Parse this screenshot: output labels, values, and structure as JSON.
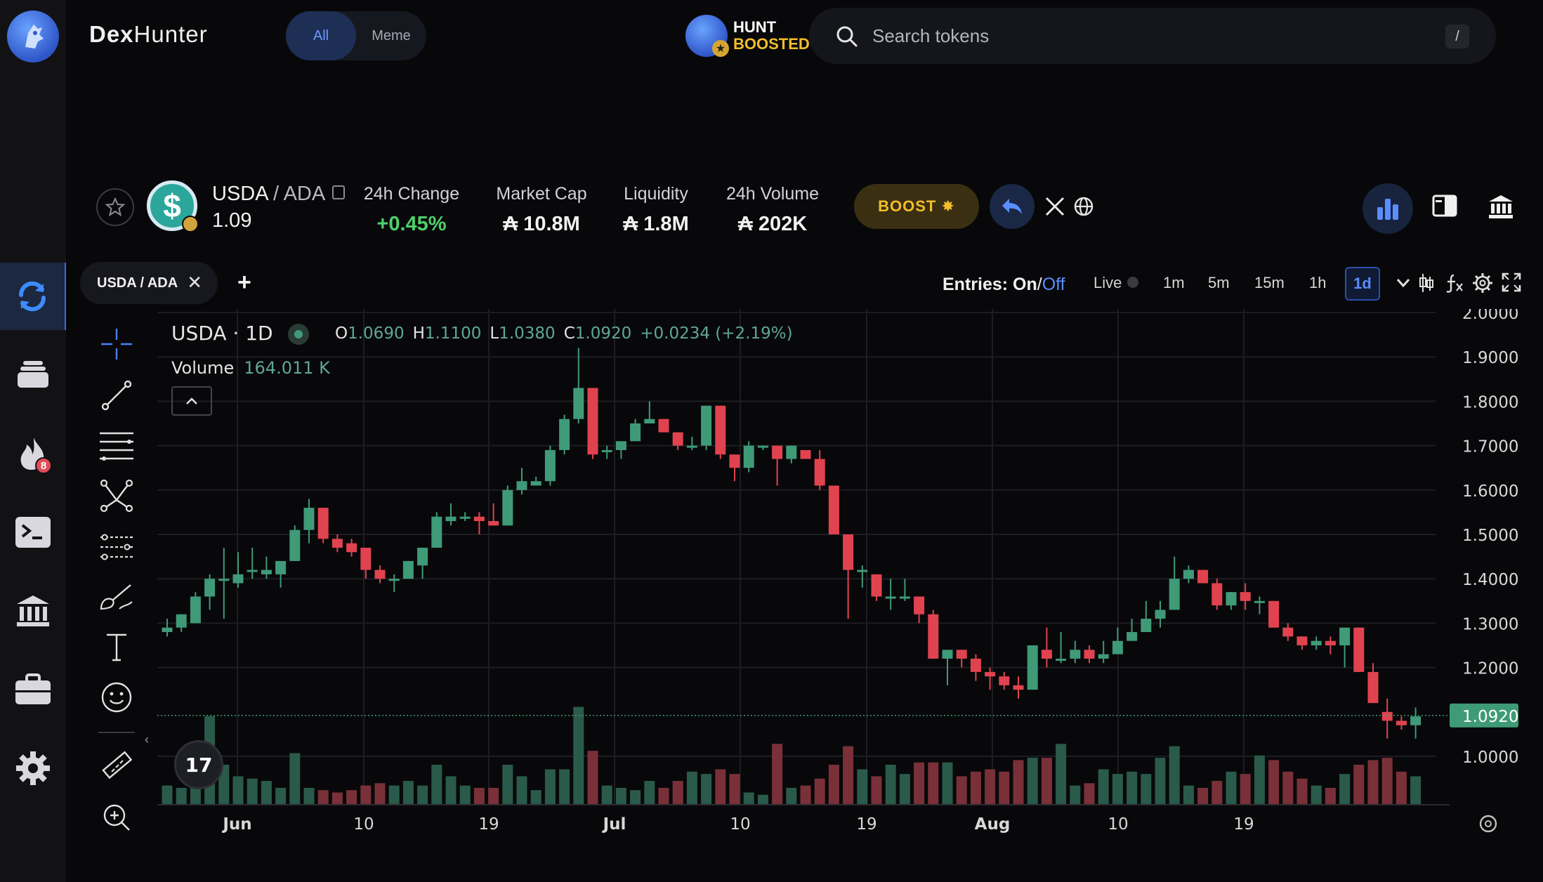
{
  "brand": {
    "name_left": "Dex",
    "name_right": "Hunter"
  },
  "filter": {
    "all_label": "All",
    "meme_label": "Meme"
  },
  "hunt": {
    "line1": "HUNT",
    "line2": "BOOSTED"
  },
  "search": {
    "placeholder": "Search tokens",
    "shortcut": "/"
  },
  "sidebar": {
    "trending_badge": "8"
  },
  "token": {
    "base": "USDA",
    "separator": " / ",
    "quote": "ADA",
    "price": "1.09",
    "stats": [
      {
        "label": "24h Change",
        "value": "+0.45%"
      },
      {
        "label": "Market Cap",
        "value": "₳ 10.8M"
      },
      {
        "label": "Liquidity",
        "value": "₳ 1.8M"
      },
      {
        "label": "24h Volume",
        "value": "₳ 202K"
      }
    ],
    "boost_label": "BOOST"
  },
  "tabs": [
    {
      "label": "USDA / ADA"
    }
  ],
  "toolbar": {
    "entries_label": "Entries:",
    "entries_on": "On",
    "entries_sep": " / ",
    "entries_off": "Off",
    "live_label": "Live",
    "timeframes": [
      "1m",
      "5m",
      "15m",
      "1h"
    ],
    "active_timeframe": "1d"
  },
  "legend": {
    "title": "USDA · 1D",
    "o_label": "O",
    "o": "1.0690",
    "h_label": "H",
    "h": "1.1100",
    "l_label": "L",
    "l": "1.0380",
    "c_label": "C",
    "c": "1.0920",
    "change": "+0.0234 (+2.19%)",
    "volume_label": "Volume",
    "volume_value": "164.011 K"
  },
  "colors": {
    "up": "#3f9a78",
    "down": "#e0434f",
    "accent": "#5a8dff",
    "gold": "#f3bd2c"
  },
  "chart_data": {
    "type": "candlestick",
    "price_axis": {
      "min": 1.0,
      "max": 2.0,
      "ticks": [
        "2.0000",
        "1.9000",
        "1.8000",
        "1.7000",
        "1.6000",
        "1.5000",
        "1.4000",
        "1.3000",
        "1.2000",
        "1.0000"
      ],
      "last_price_label": "1.0920"
    },
    "time_axis": [
      "Jun",
      "10",
      "19",
      "Jul",
      "10",
      "19",
      "Aug",
      "10",
      "19"
    ],
    "volume_max": 220,
    "candles": [
      {
        "o": 1.28,
        "h": 1.31,
        "l": 1.27,
        "c": 1.29,
        "v": 40
      },
      {
        "o": 1.29,
        "h": 1.32,
        "l": 1.28,
        "c": 1.32,
        "v": 35
      },
      {
        "o": 1.3,
        "h": 1.37,
        "l": 1.3,
        "c": 1.36,
        "v": 60
      },
      {
        "o": 1.36,
        "h": 1.41,
        "l": 1.33,
        "c": 1.4,
        "v": 190
      },
      {
        "o": 1.4,
        "h": 1.47,
        "l": 1.31,
        "c": 1.4,
        "v": 85
      },
      {
        "o": 1.39,
        "h": 1.46,
        "l": 1.38,
        "c": 1.41,
        "v": 60
      },
      {
        "o": 1.42,
        "h": 1.47,
        "l": 1.4,
        "c": 1.42,
        "v": 55
      },
      {
        "o": 1.41,
        "h": 1.45,
        "l": 1.4,
        "c": 1.42,
        "v": 50
      },
      {
        "o": 1.41,
        "h": 1.44,
        "l": 1.38,
        "c": 1.44,
        "v": 35
      },
      {
        "o": 1.44,
        "h": 1.52,
        "l": 1.44,
        "c": 1.51,
        "v": 110
      },
      {
        "o": 1.51,
        "h": 1.58,
        "l": 1.48,
        "c": 1.56,
        "v": 35
      },
      {
        "o": 1.56,
        "h": 1.56,
        "l": 1.48,
        "c": 1.49,
        "v": 30
      },
      {
        "o": 1.49,
        "h": 1.5,
        "l": 1.46,
        "c": 1.47,
        "v": 25
      },
      {
        "o": 1.48,
        "h": 1.49,
        "l": 1.45,
        "c": 1.46,
        "v": 30
      },
      {
        "o": 1.47,
        "h": 1.47,
        "l": 1.4,
        "c": 1.42,
        "v": 40
      },
      {
        "o": 1.42,
        "h": 1.43,
        "l": 1.39,
        "c": 1.4,
        "v": 45
      },
      {
        "o": 1.4,
        "h": 1.41,
        "l": 1.37,
        "c": 1.4,
        "v": 40
      },
      {
        "o": 1.4,
        "h": 1.44,
        "l": 1.4,
        "c": 1.44,
        "v": 50
      },
      {
        "o": 1.43,
        "h": 1.47,
        "l": 1.4,
        "c": 1.47,
        "v": 40
      },
      {
        "o": 1.47,
        "h": 1.55,
        "l": 1.47,
        "c": 1.54,
        "v": 85
      },
      {
        "o": 1.53,
        "h": 1.57,
        "l": 1.52,
        "c": 1.54,
        "v": 60
      },
      {
        "o": 1.54,
        "h": 1.55,
        "l": 1.53,
        "c": 1.54,
        "v": 40
      },
      {
        "o": 1.54,
        "h": 1.55,
        "l": 1.5,
        "c": 1.53,
        "v": 35
      },
      {
        "o": 1.53,
        "h": 1.57,
        "l": 1.52,
        "c": 1.52,
        "v": 35
      },
      {
        "o": 1.52,
        "h": 1.61,
        "l": 1.52,
        "c": 1.6,
        "v": 85
      },
      {
        "o": 1.6,
        "h": 1.65,
        "l": 1.59,
        "c": 1.62,
        "v": 60
      },
      {
        "o": 1.61,
        "h": 1.63,
        "l": 1.61,
        "c": 1.62,
        "v": 30
      },
      {
        "o": 1.62,
        "h": 1.7,
        "l": 1.61,
        "c": 1.69,
        "v": 75
      },
      {
        "o": 1.69,
        "h": 1.77,
        "l": 1.68,
        "c": 1.76,
        "v": 75
      },
      {
        "o": 1.76,
        "h": 1.92,
        "l": 1.75,
        "c": 1.83,
        "v": 210
      },
      {
        "o": 1.83,
        "h": 1.83,
        "l": 1.67,
        "c": 1.68,
        "v": 115
      },
      {
        "o": 1.69,
        "h": 1.7,
        "l": 1.67,
        "c": 1.69,
        "v": 40
      },
      {
        "o": 1.69,
        "h": 1.71,
        "l": 1.67,
        "c": 1.71,
        "v": 35
      },
      {
        "o": 1.71,
        "h": 1.76,
        "l": 1.71,
        "c": 1.75,
        "v": 30
      },
      {
        "o": 1.75,
        "h": 1.8,
        "l": 1.75,
        "c": 1.76,
        "v": 50
      },
      {
        "o": 1.76,
        "h": 1.76,
        "l": 1.73,
        "c": 1.73,
        "v": 35
      },
      {
        "o": 1.73,
        "h": 1.73,
        "l": 1.69,
        "c": 1.7,
        "v": 50
      },
      {
        "o": 1.7,
        "h": 1.72,
        "l": 1.69,
        "c": 1.7,
        "v": 70
      },
      {
        "o": 1.7,
        "h": 1.79,
        "l": 1.69,
        "c": 1.79,
        "v": 65
      },
      {
        "o": 1.79,
        "h": 1.79,
        "l": 1.67,
        "c": 1.68,
        "v": 75
      },
      {
        "o": 1.68,
        "h": 1.68,
        "l": 1.62,
        "c": 1.65,
        "v": 65
      },
      {
        "o": 1.65,
        "h": 1.71,
        "l": 1.64,
        "c": 1.7,
        "v": 25
      },
      {
        "o": 1.7,
        "h": 1.7,
        "l": 1.69,
        "c": 1.7,
        "v": 20
      },
      {
        "o": 1.7,
        "h": 1.7,
        "l": 1.61,
        "c": 1.67,
        "v": 130
      },
      {
        "o": 1.67,
        "h": 1.7,
        "l": 1.66,
        "c": 1.7,
        "v": 35
      },
      {
        "o": 1.69,
        "h": 1.69,
        "l": 1.67,
        "c": 1.67,
        "v": 40
      },
      {
        "o": 1.67,
        "h": 1.69,
        "l": 1.6,
        "c": 1.61,
        "v": 55
      },
      {
        "o": 1.61,
        "h": 1.61,
        "l": 1.5,
        "c": 1.5,
        "v": 85
      },
      {
        "o": 1.5,
        "h": 1.5,
        "l": 1.31,
        "c": 1.42,
        "v": 125
      },
      {
        "o": 1.42,
        "h": 1.43,
        "l": 1.38,
        "c": 1.42,
        "v": 75
      },
      {
        "o": 1.41,
        "h": 1.41,
        "l": 1.35,
        "c": 1.36,
        "v": 60
      },
      {
        "o": 1.36,
        "h": 1.4,
        "l": 1.33,
        "c": 1.36,
        "v": 85
      },
      {
        "o": 1.36,
        "h": 1.4,
        "l": 1.35,
        "c": 1.36,
        "v": 65
      },
      {
        "o": 1.36,
        "h": 1.36,
        "l": 1.3,
        "c": 1.32,
        "v": 90
      },
      {
        "o": 1.32,
        "h": 1.33,
        "l": 1.22,
        "c": 1.22,
        "v": 90
      },
      {
        "o": 1.22,
        "h": 1.24,
        "l": 1.16,
        "c": 1.24,
        "v": 90
      },
      {
        "o": 1.24,
        "h": 1.24,
        "l": 1.2,
        "c": 1.22,
        "v": 60
      },
      {
        "o": 1.22,
        "h": 1.23,
        "l": 1.17,
        "c": 1.19,
        "v": 70
      },
      {
        "o": 1.19,
        "h": 1.2,
        "l": 1.15,
        "c": 1.18,
        "v": 75
      },
      {
        "o": 1.18,
        "h": 1.19,
        "l": 1.15,
        "c": 1.16,
        "v": 70
      },
      {
        "o": 1.16,
        "h": 1.18,
        "l": 1.13,
        "c": 1.15,
        "v": 95
      },
      {
        "o": 1.15,
        "h": 1.25,
        "l": 1.15,
        "c": 1.25,
        "v": 100
      },
      {
        "o": 1.24,
        "h": 1.29,
        "l": 1.2,
        "c": 1.22,
        "v": 100
      },
      {
        "o": 1.22,
        "h": 1.28,
        "l": 1.21,
        "c": 1.22,
        "v": 130
      },
      {
        "o": 1.22,
        "h": 1.26,
        "l": 1.21,
        "c": 1.24,
        "v": 40
      },
      {
        "o": 1.24,
        "h": 1.25,
        "l": 1.21,
        "c": 1.22,
        "v": 45
      },
      {
        "o": 1.22,
        "h": 1.26,
        "l": 1.21,
        "c": 1.23,
        "v": 75
      },
      {
        "o": 1.23,
        "h": 1.29,
        "l": 1.23,
        "c": 1.26,
        "v": 65
      },
      {
        "o": 1.26,
        "h": 1.31,
        "l": 1.26,
        "c": 1.28,
        "v": 70
      },
      {
        "o": 1.28,
        "h": 1.35,
        "l": 1.28,
        "c": 1.31,
        "v": 65
      },
      {
        "o": 1.31,
        "h": 1.35,
        "l": 1.29,
        "c": 1.33,
        "v": 100
      },
      {
        "o": 1.33,
        "h": 1.45,
        "l": 1.33,
        "c": 1.4,
        "v": 125
      },
      {
        "o": 1.4,
        "h": 1.43,
        "l": 1.39,
        "c": 1.42,
        "v": 40
      },
      {
        "o": 1.42,
        "h": 1.42,
        "l": 1.39,
        "c": 1.39,
        "v": 35
      },
      {
        "o": 1.39,
        "h": 1.4,
        "l": 1.33,
        "c": 1.34,
        "v": 50
      },
      {
        "o": 1.34,
        "h": 1.37,
        "l": 1.33,
        "c": 1.37,
        "v": 70
      },
      {
        "o": 1.37,
        "h": 1.39,
        "l": 1.33,
        "c": 1.35,
        "v": 65
      },
      {
        "o": 1.35,
        "h": 1.36,
        "l": 1.32,
        "c": 1.35,
        "v": 105
      },
      {
        "o": 1.35,
        "h": 1.35,
        "l": 1.29,
        "c": 1.29,
        "v": 95
      },
      {
        "o": 1.29,
        "h": 1.3,
        "l": 1.26,
        "c": 1.27,
        "v": 70
      },
      {
        "o": 1.27,
        "h": 1.27,
        "l": 1.24,
        "c": 1.25,
        "v": 55
      },
      {
        "o": 1.25,
        "h": 1.27,
        "l": 1.24,
        "c": 1.26,
        "v": 40
      },
      {
        "o": 1.26,
        "h": 1.27,
        "l": 1.23,
        "c": 1.25,
        "v": 35
      },
      {
        "o": 1.25,
        "h": 1.29,
        "l": 1.2,
        "c": 1.29,
        "v": 65
      },
      {
        "o": 1.29,
        "h": 1.29,
        "l": 1.19,
        "c": 1.19,
        "v": 85
      },
      {
        "o": 1.19,
        "h": 1.21,
        "l": 1.12,
        "c": 1.12,
        "v": 95
      },
      {
        "o": 1.1,
        "h": 1.13,
        "l": 1.04,
        "c": 1.08,
        "v": 100
      },
      {
        "o": 1.08,
        "h": 1.09,
        "l": 1.06,
        "c": 1.07,
        "v": 70
      },
      {
        "o": 1.07,
        "h": 1.11,
        "l": 1.04,
        "c": 1.09,
        "v": 60
      }
    ]
  }
}
